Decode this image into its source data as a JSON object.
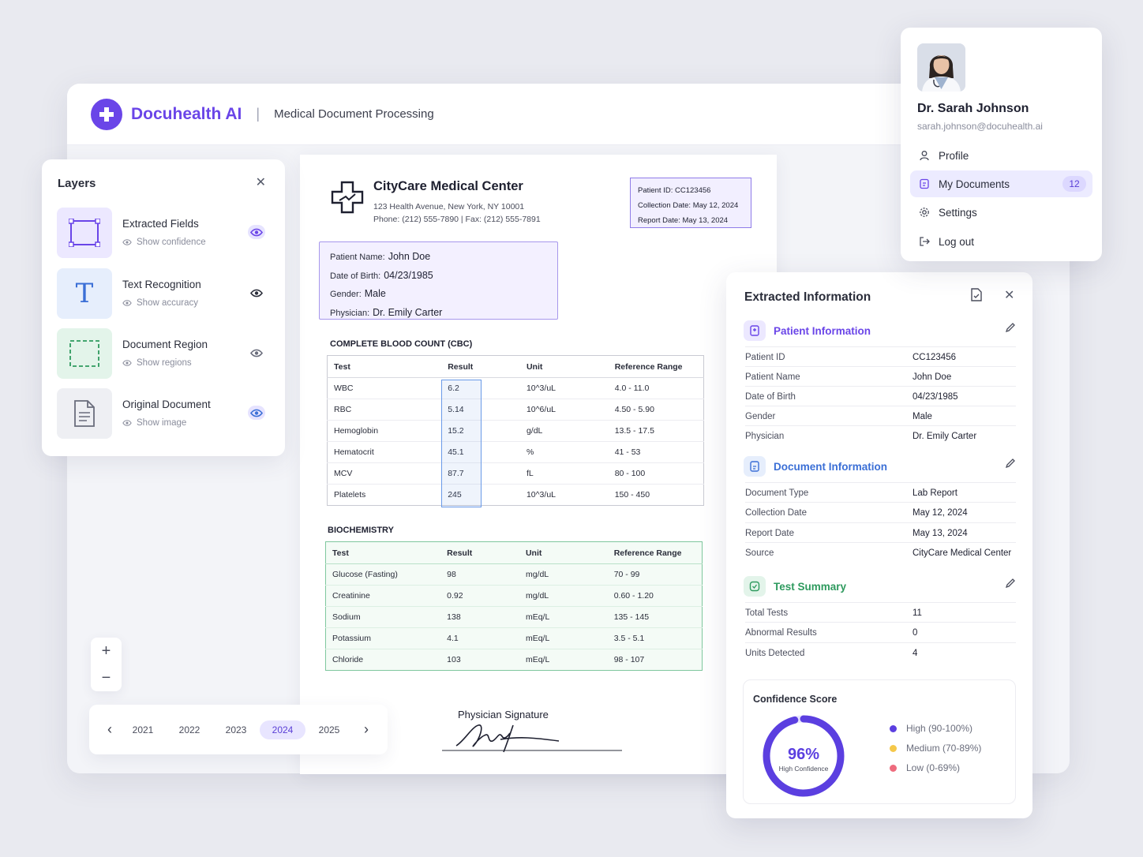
{
  "header": {
    "brand": "Docuhealth AI",
    "separator": "|",
    "subtitle": "Medical Document Processing"
  },
  "layers": {
    "title": "Layers",
    "items": [
      {
        "name": "Extracted Fields",
        "sub": "Show confidence",
        "visible": true
      },
      {
        "name": "Text Recognition",
        "sub": "Show accuracy",
        "visible": false
      },
      {
        "name": "Document Region",
        "sub": "Show regions",
        "visible": false
      },
      {
        "name": "Original Document",
        "sub": "Show image",
        "visible": true
      }
    ]
  },
  "zoom": {
    "in": "+",
    "out": "−"
  },
  "years": {
    "prev": "‹",
    "next": "›",
    "items": [
      "2021",
      "2022",
      "2023",
      "2024",
      "2025"
    ],
    "selected": "2024"
  },
  "document": {
    "org": "CityCare Medical Center",
    "address": "123 Health Avenue, New York, NY 10001",
    "phone": "Phone: (212) 555-7890  |  Fax: (212) 555-7891",
    "ids": {
      "patient_id": "Patient ID: CC123456",
      "collection": "Collection Date: May 12, 2024",
      "report": "Report Date: May 13, 2024"
    },
    "patient": {
      "name_label": "Patient Name:",
      "name": "John Doe",
      "dob_label": "Date of Birth:",
      "dob": "04/23/1985",
      "gender_label": "Gender:",
      "gender": "Male",
      "physician_label": "Physician:",
      "physician": "Dr. Emily Carter"
    },
    "cbc": {
      "title": "COMPLETE BLOOD COUNT (CBC)",
      "headers": [
        "Test",
        "Result",
        "Unit",
        "Reference Range"
      ],
      "rows": [
        [
          "WBC",
          "6.2",
          "10^3/uL",
          "4.0 - 11.0"
        ],
        [
          "RBC",
          "5.14",
          "10^6/uL",
          "4.50 - 5.90"
        ],
        [
          "Hemoglobin",
          "15.2",
          "g/dL",
          "13.5 - 17.5"
        ],
        [
          "Hematocrit",
          "45.1",
          "%",
          "41 - 53"
        ],
        [
          "MCV",
          "87.7",
          "fL",
          "80 - 100"
        ],
        [
          "Platelets",
          "245",
          "10^3/uL",
          "150 - 450"
        ]
      ]
    },
    "bio": {
      "title": "BIOCHEMISTRY",
      "headers": [
        "Test",
        "Result",
        "Unit",
        "Reference Range"
      ],
      "rows": [
        [
          "Glucose (Fasting)",
          "98",
          "mg/dL",
          "70 - 99"
        ],
        [
          "Creatinine",
          "0.92",
          "mg/dL",
          "0.60 - 1.20"
        ],
        [
          "Sodium",
          "138",
          "mEq/L",
          "135 - 145"
        ],
        [
          "Potassium",
          "4.1",
          "mEq/L",
          "3.5 - 5.1"
        ],
        [
          "Chloride",
          "103",
          "mEq/L",
          "98 - 107"
        ]
      ]
    },
    "signature_label": "Physician Signature"
  },
  "extracted": {
    "title": "Extracted Information",
    "sections": [
      {
        "title": "Patient Information",
        "color": "#6a45e8",
        "bg": "#ece8ff",
        "rows": [
          [
            "Patient ID",
            "CC123456"
          ],
          [
            "Patient Name",
            "John Doe"
          ],
          [
            "Date of Birth",
            "04/23/1985"
          ],
          [
            "Gender",
            "Male"
          ],
          [
            "Physician",
            "Dr. Emily Carter"
          ]
        ]
      },
      {
        "title": "Document Information",
        "color": "#3b6fd6",
        "bg": "#e6eefc",
        "rows": [
          [
            "Document Type",
            "Lab Report"
          ],
          [
            "Collection Date",
            "May 12, 2024"
          ],
          [
            "Report Date",
            "May 13, 2024"
          ],
          [
            "Source",
            "CityCare Medical Center"
          ]
        ]
      },
      {
        "title": "Test Summary",
        "color": "#2e9a5e",
        "bg": "#e3f4ea",
        "rows": [
          [
            "Total Tests",
            "11"
          ],
          [
            "Abnormal Results",
            "0"
          ],
          [
            "Units Detected",
            "4"
          ]
        ]
      }
    ],
    "confidence": {
      "title": "Confidence Score",
      "value": "96%",
      "fraction": 0.96,
      "caption": "High Confidence",
      "legend": [
        {
          "label": "High (90-100%)",
          "color": "#5b3fe0"
        },
        {
          "label": "Medium (70-89%)",
          "color": "#f5c84a"
        },
        {
          "label": "Low (0-69%)",
          "color": "#ee6b7d"
        }
      ]
    }
  },
  "profile": {
    "name": "Dr. Sarah Johnson",
    "email": "sarah.johnson@docuhealth.ai",
    "menu": [
      {
        "label": "Profile",
        "icon": "user-icon"
      },
      {
        "label": "My Documents",
        "icon": "documents-icon",
        "badge": "12",
        "active": true
      },
      {
        "label": "Settings",
        "icon": "gear-icon"
      },
      {
        "label": "Log out",
        "icon": "logout-icon"
      }
    ]
  }
}
